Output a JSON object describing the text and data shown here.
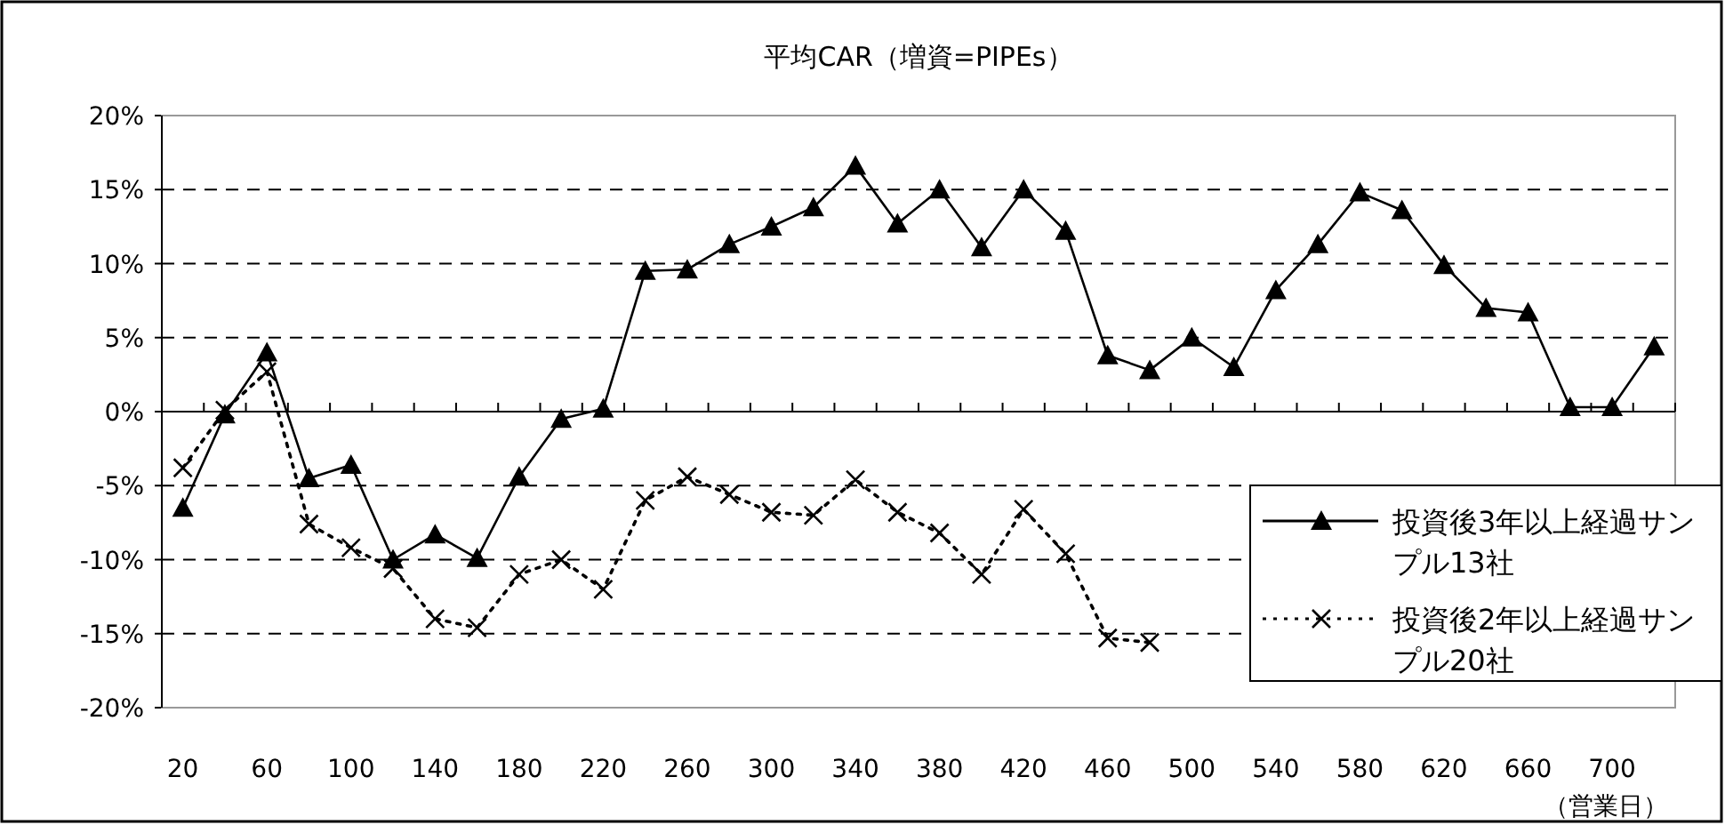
{
  "chart_data": {
    "type": "line",
    "title": "平均CAR（増資=PIPEs）",
    "xlabel": "（営業日）",
    "categories": [
      "20",
      null,
      "60",
      null,
      "100",
      null,
      "140",
      null,
      "180",
      null,
      "220",
      null,
      "260",
      null,
      "300",
      null,
      "340",
      null,
      "380",
      null,
      "420",
      null,
      "460",
      null,
      "500",
      null,
      "540",
      null,
      "580",
      null,
      "620",
      null,
      "660",
      null,
      "700",
      null
    ],
    "series": [
      {
        "name": "投資後3年以上経過サンプル13社",
        "color": "#000000",
        "marker": "triangle",
        "line_style": "solid",
        "values": [
          -6.5,
          -0.2,
          4.0,
          -4.5,
          -3.6,
          -10,
          -8.3,
          -9.9,
          -4.4,
          -0.5,
          0.2,
          9.5,
          9.6,
          11.3,
          12.5,
          13.8,
          16.6,
          12.7,
          15.0,
          11.1,
          15.0,
          12.2,
          3.8,
          2.8,
          5.0,
          3.0,
          8.2,
          11.3,
          14.8,
          13.6,
          9.9,
          7.0,
          6.7,
          0.3,
          0.3,
          4.4
        ]
      },
      {
        "name": "投資後2年以上経過サンプル20社",
        "color": "#000000",
        "marker": "cross",
        "line_style": "dotted",
        "values": [
          -3.8,
          0.1,
          2.7,
          -7.6,
          -9.2,
          -10.6,
          -14,
          -14.6,
          -11,
          -10,
          -12,
          -6,
          -4.4,
          -5.6,
          -6.8,
          -7,
          -4.6,
          -6.8,
          -8.2,
          -11,
          -6.6,
          -9.6,
          -15.3,
          -15.6,
          null,
          null,
          null,
          null,
          null,
          null,
          null,
          null,
          null,
          null,
          null,
          null
        ]
      }
    ],
    "ylim": [
      -20,
      20
    ],
    "yticks": [
      {
        "value": -20,
        "label": "-20%"
      },
      {
        "value": -15,
        "label": "-15%"
      },
      {
        "value": -10,
        "label": "-10%"
      },
      {
        "value": -5,
        "label": "-5%"
      },
      {
        "value": 0,
        "label": "0%"
      },
      {
        "value": 5,
        "label": "5%"
      },
      {
        "value": 10,
        "label": "10%"
      },
      {
        "value": 15,
        "label": "15%"
      },
      {
        "value": 20,
        "label": "20%"
      }
    ],
    "grid": "y",
    "legend": "right"
  }
}
